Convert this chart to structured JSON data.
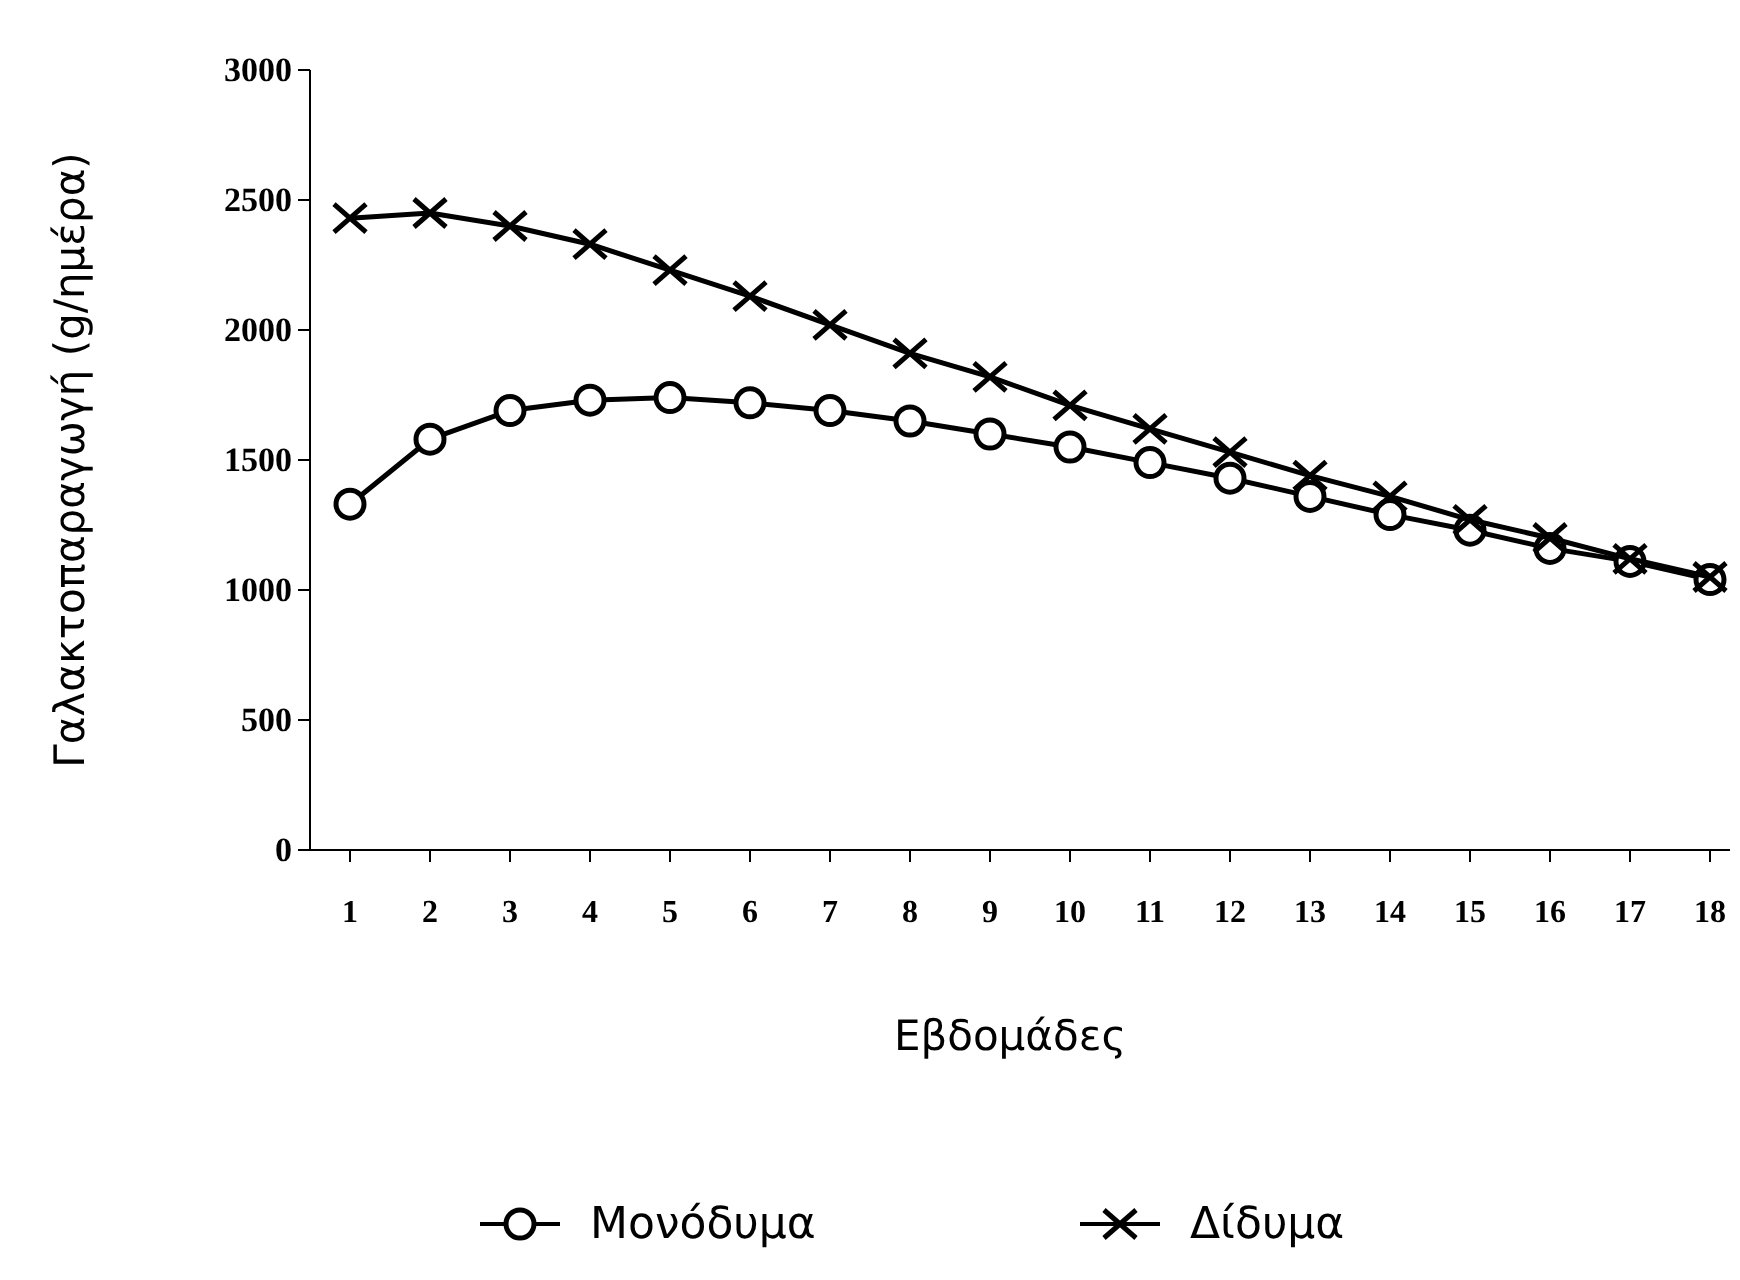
{
  "chart_data": {
    "type": "line",
    "xlabel": "Εβδομάδες",
    "ylabel": "Γαλακτοπαραγωγή (g/ημέρα)",
    "x": [
      1,
      2,
      3,
      4,
      5,
      6,
      7,
      8,
      9,
      10,
      11,
      12,
      13,
      14,
      15,
      16,
      17,
      18
    ],
    "xlim": [
      0.5,
      18.25
    ],
    "xticks": [
      1,
      2,
      3,
      4,
      5,
      6,
      7,
      8,
      9,
      10,
      11,
      12,
      13,
      14,
      15,
      16,
      17,
      18
    ],
    "ylim": [
      0,
      3000
    ],
    "yticks": [
      0,
      500,
      1000,
      1500,
      2000,
      2500,
      3000
    ],
    "grid": false,
    "legend": "bottom",
    "series": [
      {
        "name": "Μονόδυμα",
        "color": "#000000",
        "marker": "circle",
        "values": [
          1330,
          1580,
          1690,
          1730,
          1740,
          1720,
          1690,
          1650,
          1600,
          1550,
          1490,
          1430,
          1360,
          1290,
          1230,
          1160,
          1110,
          1040
        ]
      },
      {
        "name": "Δίδυμα",
        "color": "#000000",
        "marker": "cross",
        "values": [
          2430,
          2450,
          2400,
          2330,
          2230,
          2130,
          2020,
          1910,
          1820,
          1710,
          1620,
          1530,
          1440,
          1360,
          1270,
          1200,
          1120,
          1050
        ]
      }
    ]
  }
}
